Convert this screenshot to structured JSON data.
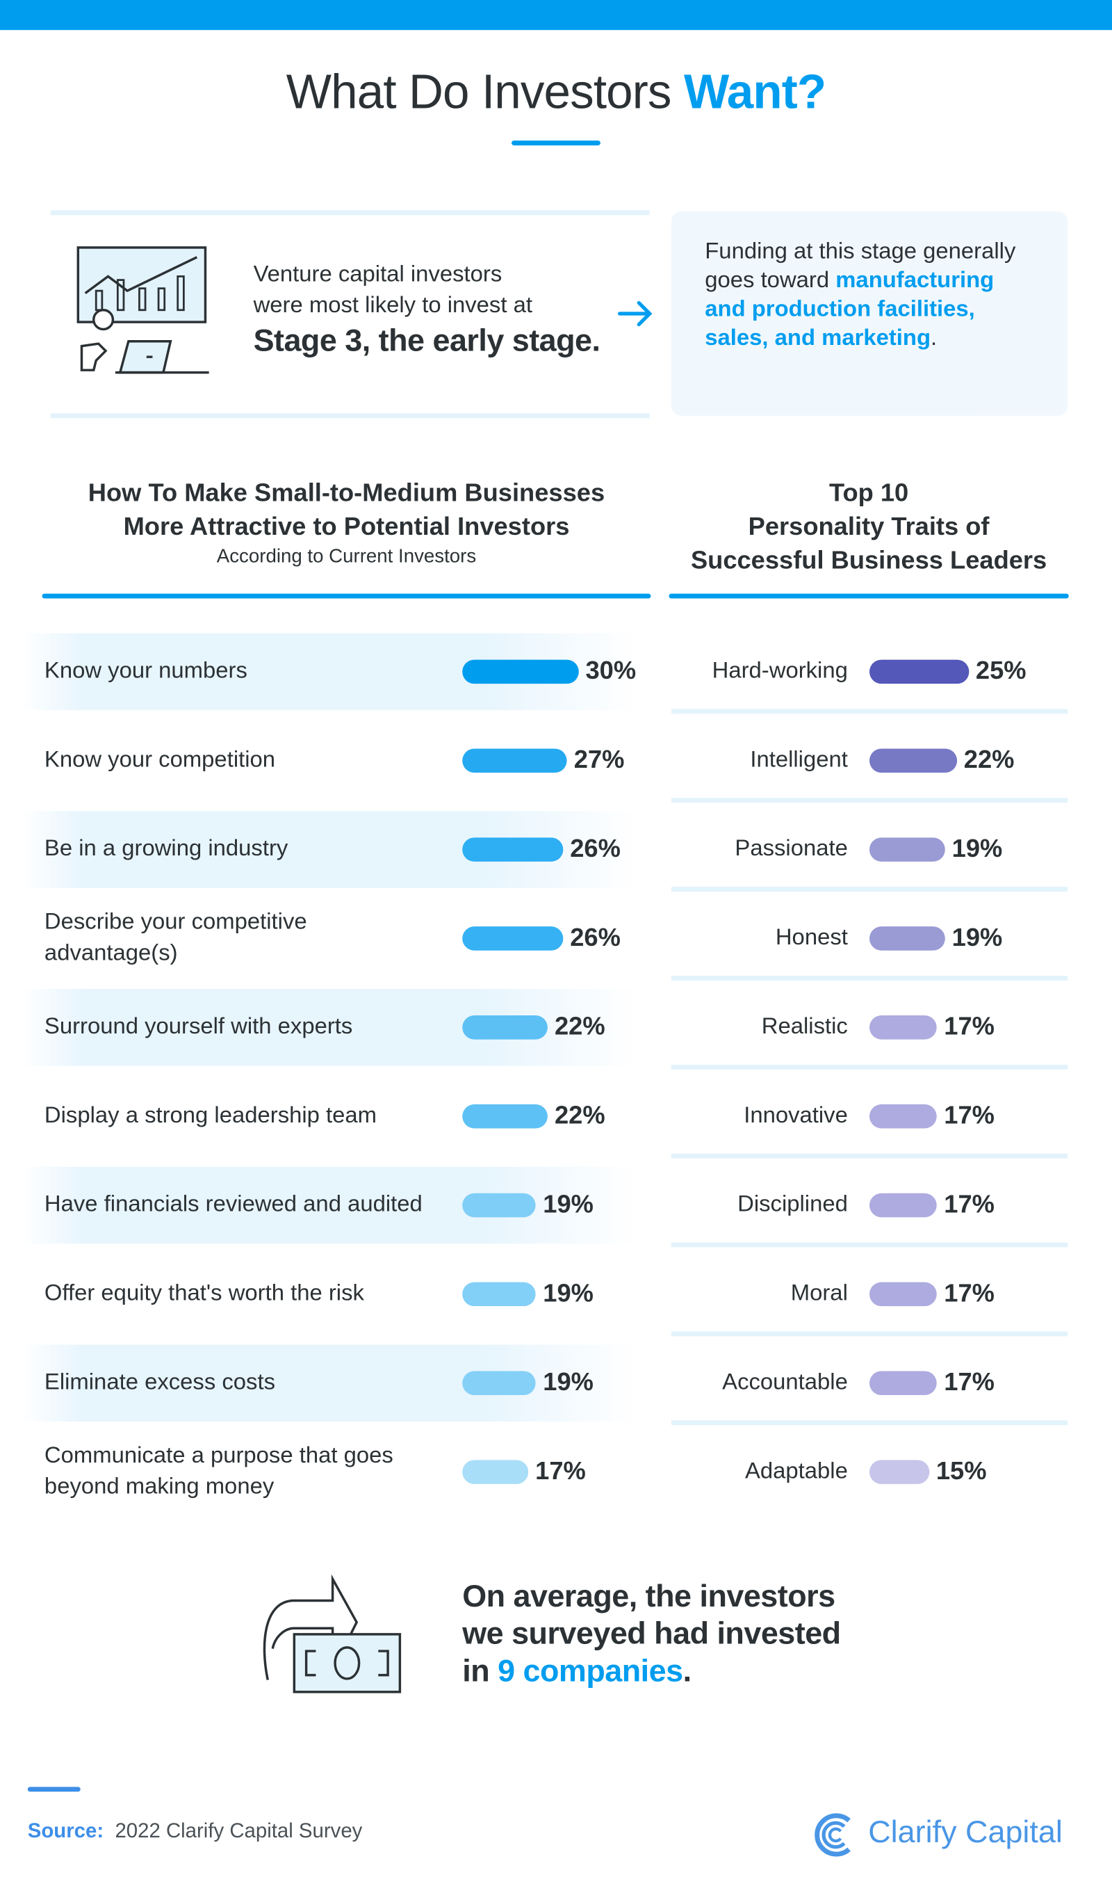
{
  "title": {
    "prefix": "What Do Investors",
    "highlight": "Want?"
  },
  "intro": {
    "line1": "Venture capital investors",
    "line2": "were most likely to invest at",
    "emphasis": "Stage 3, the early stage."
  },
  "callout": {
    "text": "Funding at this stage generally goes toward",
    "highlight": "manufacturing and production facilities, sales, and  marketing",
    "end": "."
  },
  "chart_data": [
    {
      "type": "bar",
      "orientation": "horizontal",
      "title": "How To Make Small-to-Medium Businesses More Attractive to Potential Investors",
      "subtitle": "According to Current Investors",
      "unit": "%",
      "categories": [
        "Know your numbers",
        "Know your competition",
        "Be in a growing industry",
        "Describe your competitive advantage(s)",
        "Surround yourself with experts",
        "Display a strong leadership team",
        "Have financials reviewed and audited",
        "Offer equity that's worth the risk",
        "Eliminate excess costs",
        "Communicate a purpose that goes beyond making money"
      ],
      "values": [
        30,
        27,
        26,
        26,
        22,
        22,
        19,
        19,
        19,
        17
      ],
      "labels": [
        "30%",
        "27%",
        "26%",
        "26%",
        "22%",
        "22%",
        "19%",
        "19%",
        "19%",
        "17%"
      ],
      "colors": [
        "#009def",
        "#25aaf2",
        "#2eaef3",
        "#36b1f3",
        "#5cc0f5",
        "#5ec1f5",
        "#7fcef7",
        "#82cff7",
        "#85d0f7",
        "#a9def9"
      ]
    },
    {
      "type": "bar",
      "orientation": "horizontal",
      "title": "Top 10 Personality Traits of Successful Business Leaders",
      "unit": "%",
      "categories": [
        "Hard-working",
        "Intelligent",
        "Passionate",
        "Honest",
        "Realistic",
        "Innovative",
        "Disciplined",
        "Moral",
        "Accountable",
        "Adaptable"
      ],
      "values": [
        25,
        22,
        19,
        19,
        17,
        17,
        17,
        17,
        17,
        15
      ],
      "labels": [
        "25%",
        "22%",
        "19%",
        "19%",
        "17%",
        "17%",
        "17%",
        "17%",
        "17%",
        "15%"
      ],
      "colors": [
        "#5458b8",
        "#7779c5",
        "#9a9ad5",
        "#9a9ad5",
        "#adabdf",
        "#adabdf",
        "#adabdf",
        "#adabdf",
        "#adabdf",
        "#c7c5ea"
      ]
    }
  ],
  "left_header": {
    "line1": "How To Make Small-to-Medium Businesses",
    "line2": "More Attractive to Potential Investors",
    "sub": "According to Current Investors"
  },
  "right_header": {
    "line1": "Top 10",
    "line2": "Personality Traits of",
    "line3": "Successful Business Leaders"
  },
  "bottom": {
    "line1": "On average, the investors",
    "line2": "we surveyed had invested",
    "line3_prefix": "in",
    "highlight": "9 companies",
    "end": "."
  },
  "footer": {
    "source_label": "Source:",
    "source": "2022 Clarify Capital Survey",
    "brand": "Clarify Capital"
  },
  "colors": {
    "accent": "#009def",
    "brand": "#4996e6",
    "text": "#2b3134"
  }
}
